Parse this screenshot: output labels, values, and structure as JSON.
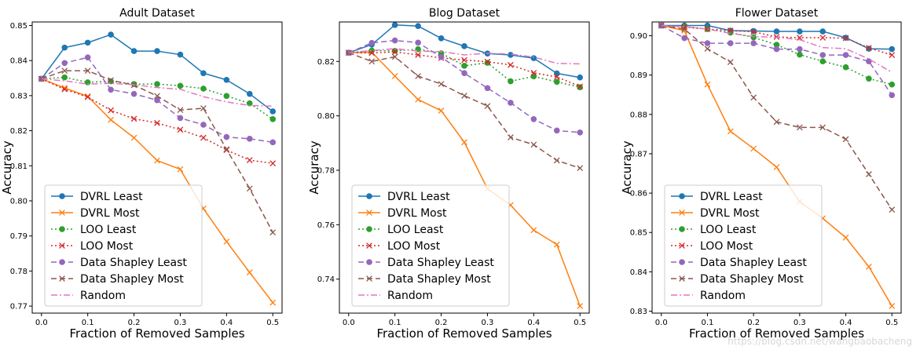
{
  "series_styles": [
    {
      "name": "DVRL Least",
      "color": "#1f77b4",
      "dash": "",
      "marker": "circle"
    },
    {
      "name": "DVRL Most",
      "color": "#ff7f0e",
      "dash": "",
      "marker": "x"
    },
    {
      "name": "LOO Least",
      "color": "#2ca02c",
      "dash": "2,3",
      "marker": "circle"
    },
    {
      "name": "LOO Most",
      "color": "#d62728",
      "dash": "2,3",
      "marker": "x"
    },
    {
      "name": "Data Shapley Least",
      "color": "#9467bd",
      "dash": "7,4",
      "marker": "circle"
    },
    {
      "name": "Data Shapley Most",
      "color": "#8c564b",
      "dash": "7,4",
      "marker": "x"
    },
    {
      "name": "Random",
      "color": "#e377c2",
      "dash": "8,3,2,3",
      "marker": "none"
    }
  ],
  "watermark": "https://blog.csdn.net/wangbaobacheng",
  "chart_data": [
    {
      "type": "line",
      "title": "Adult Dataset",
      "xlabel": "Fraction of Removed Samples",
      "ylabel": "Accuracy",
      "xlim": [
        -0.02,
        0.52
      ],
      "ylim": [
        0.768,
        0.851
      ],
      "xticks": [
        0.0,
        0.1,
        0.2,
        0.3,
        0.4,
        0.5
      ],
      "xtick_labels": [
        "0.0",
        "0.1",
        "0.2",
        "0.3",
        "0.4",
        "0.5"
      ],
      "yticks": [
        0.77,
        0.78,
        0.79,
        0.8,
        0.81,
        0.82,
        0.83,
        0.84,
        0.85
      ],
      "ytick_labels": [
        "0.77",
        "0.78",
        "0.79",
        "0.80",
        "0.81",
        "0.82",
        "0.83",
        "0.84",
        "0.85"
      ],
      "legend_position": "lower-left",
      "x": [
        0.0,
        0.05,
        0.1,
        0.15,
        0.2,
        0.25,
        0.3,
        0.35,
        0.4,
        0.45,
        0.5
      ],
      "series": [
        {
          "name": "DVRL Least",
          "values": [
            0.8348,
            0.8437,
            0.8451,
            0.8474,
            0.8427,
            0.8427,
            0.8417,
            0.8364,
            0.8345,
            0.8305,
            0.8255
          ]
        },
        {
          "name": "DVRL Most",
          "values": [
            0.8348,
            0.8322,
            0.8298,
            0.8231,
            0.818,
            0.8115,
            0.809,
            0.7978,
            0.7884,
            0.7796,
            0.771
          ]
        },
        {
          "name": "LOO Least",
          "values": [
            0.8348,
            0.8352,
            0.8338,
            0.8341,
            0.8333,
            0.8333,
            0.8328,
            0.832,
            0.8299,
            0.8278,
            0.8233
          ]
        },
        {
          "name": "LOO Most",
          "values": [
            0.8348,
            0.8318,
            0.8296,
            0.8258,
            0.8234,
            0.8222,
            0.8203,
            0.818,
            0.8145,
            0.8116,
            0.8107
          ]
        },
        {
          "name": "Data Shapley Least",
          "values": [
            0.8348,
            0.8393,
            0.8409,
            0.8317,
            0.8305,
            0.8287,
            0.8236,
            0.8217,
            0.8182,
            0.8177,
            0.8167
          ]
        },
        {
          "name": "Data Shapley Most",
          "values": [
            0.8348,
            0.8371,
            0.8371,
            0.8344,
            0.833,
            0.8299,
            0.8259,
            0.8264,
            0.8147,
            0.8035,
            0.791
          ]
        },
        {
          "name": "Random",
          "values": [
            0.8348,
            0.8342,
            0.8333,
            0.8335,
            0.8331,
            0.8323,
            0.8318,
            0.8297,
            0.8282,
            0.8272,
            0.827
          ]
        }
      ]
    },
    {
      "type": "line",
      "title": "Blog Dataset",
      "xlabel": "Fraction of Removed Samples",
      "ylabel": "Accuracy",
      "xlim": [
        -0.02,
        0.52
      ],
      "ylim": [
        0.7275,
        0.8345
      ],
      "xticks": [
        0.0,
        0.1,
        0.2,
        0.3,
        0.4,
        0.5
      ],
      "xtick_labels": [
        "0.0",
        "0.1",
        "0.2",
        "0.3",
        "0.4",
        "0.5"
      ],
      "yticks": [
        0.74,
        0.76,
        0.78,
        0.8,
        0.82
      ],
      "ytick_labels": [
        "0.74",
        "0.76",
        "0.78",
        "0.80",
        "0.82"
      ],
      "legend_position": "lower-left",
      "x": [
        0.0,
        0.05,
        0.1,
        0.15,
        0.2,
        0.25,
        0.3,
        0.35,
        0.4,
        0.45,
        0.5
      ],
      "series": [
        {
          "name": "DVRL Least",
          "values": [
            0.8232,
            0.8262,
            0.8334,
            0.833,
            0.8285,
            0.8256,
            0.8229,
            0.8224,
            0.8212,
            0.8156,
            0.8141
          ]
        },
        {
          "name": "DVRL Most",
          "values": [
            0.8232,
            0.8234,
            0.8146,
            0.806,
            0.8019,
            0.7903,
            0.7732,
            0.7672,
            0.758,
            0.7527,
            0.7301
          ]
        },
        {
          "name": "LOO Least",
          "values": [
            0.8232,
            0.824,
            0.8239,
            0.8245,
            0.823,
            0.8184,
            0.8195,
            0.8127,
            0.8145,
            0.8125,
            0.8105
          ]
        },
        {
          "name": "LOO Most",
          "values": [
            0.8232,
            0.8231,
            0.8235,
            0.8224,
            0.8213,
            0.8205,
            0.8199,
            0.8187,
            0.8158,
            0.8143,
            0.8108
          ]
        },
        {
          "name": "Data Shapley Least",
          "values": [
            0.8232,
            0.8268,
            0.8277,
            0.8269,
            0.8216,
            0.8157,
            0.8102,
            0.8048,
            0.7988,
            0.7946,
            0.7939
          ]
        },
        {
          "name": "Data Shapley Most",
          "values": [
            0.8232,
            0.82,
            0.8217,
            0.8146,
            0.8117,
            0.8074,
            0.8036,
            0.7921,
            0.7894,
            0.7836,
            0.7808
          ]
        },
        {
          "name": "Random",
          "values": [
            0.8232,
            0.824,
            0.8247,
            0.8238,
            0.8236,
            0.8224,
            0.823,
            0.8227,
            0.8216,
            0.8193,
            0.8191
          ]
        }
      ]
    },
    {
      "type": "line",
      "title": "Flower Dataset",
      "xlabel": "Fraction of Removed Samples",
      "ylabel": "Accuracy",
      "xlim": [
        -0.02,
        0.52
      ],
      "ylim": [
        0.8295,
        0.9035
      ],
      "xticks": [
        0.0,
        0.1,
        0.2,
        0.3,
        0.4,
        0.5
      ],
      "xtick_labels": [
        "0.0",
        "0.1",
        "0.2",
        "0.3",
        "0.4",
        "0.5"
      ],
      "yticks": [
        0.83,
        0.84,
        0.85,
        0.86,
        0.87,
        0.88,
        0.89,
        0.9
      ],
      "ytick_labels": [
        "0.83",
        "0.84",
        "0.85",
        "0.86",
        "0.87",
        "0.88",
        "0.89",
        "0.90"
      ],
      "legend_position": "lower-left",
      "x": [
        0.0,
        0.05,
        0.1,
        0.15,
        0.2,
        0.25,
        0.3,
        0.35,
        0.4,
        0.45,
        0.5
      ],
      "series": [
        {
          "name": "DVRL Least",
          "values": [
            0.9026,
            0.9026,
            0.9026,
            0.9013,
            0.9012,
            0.9011,
            0.9011,
            0.9011,
            0.8995,
            0.8967,
            0.8966
          ]
        },
        {
          "name": "DVRL Most",
          "values": [
            0.9026,
            0.9013,
            0.8876,
            0.8757,
            0.8713,
            0.8666,
            0.8578,
            0.8536,
            0.8487,
            0.8413,
            0.8313
          ]
        },
        {
          "name": "LOO Least",
          "values": [
            0.9026,
            0.9023,
            0.9017,
            0.9008,
            0.8996,
            0.8977,
            0.8952,
            0.8935,
            0.892,
            0.8891,
            0.8876
          ]
        },
        {
          "name": "LOO Most",
          "values": [
            0.9026,
            0.9022,
            0.9017,
            0.9013,
            0.901,
            0.8997,
            0.8995,
            0.8995,
            0.8994,
            0.8969,
            0.8951
          ]
        },
        {
          "name": "Data Shapley Least",
          "values": [
            0.9026,
            0.8994,
            0.8981,
            0.8981,
            0.8981,
            0.8966,
            0.8966,
            0.8951,
            0.8951,
            0.8935,
            0.8849
          ]
        },
        {
          "name": "Data Shapley Most",
          "values": [
            0.9026,
            0.9017,
            0.8967,
            0.8933,
            0.8843,
            0.8781,
            0.8767,
            0.8767,
            0.8737,
            0.8648,
            0.8558
          ]
        },
        {
          "name": "Random",
          "values": [
            0.9026,
            0.9023,
            0.9017,
            0.9006,
            0.8998,
            0.8996,
            0.899,
            0.897,
            0.8967,
            0.8941,
            0.8907
          ]
        }
      ]
    }
  ]
}
